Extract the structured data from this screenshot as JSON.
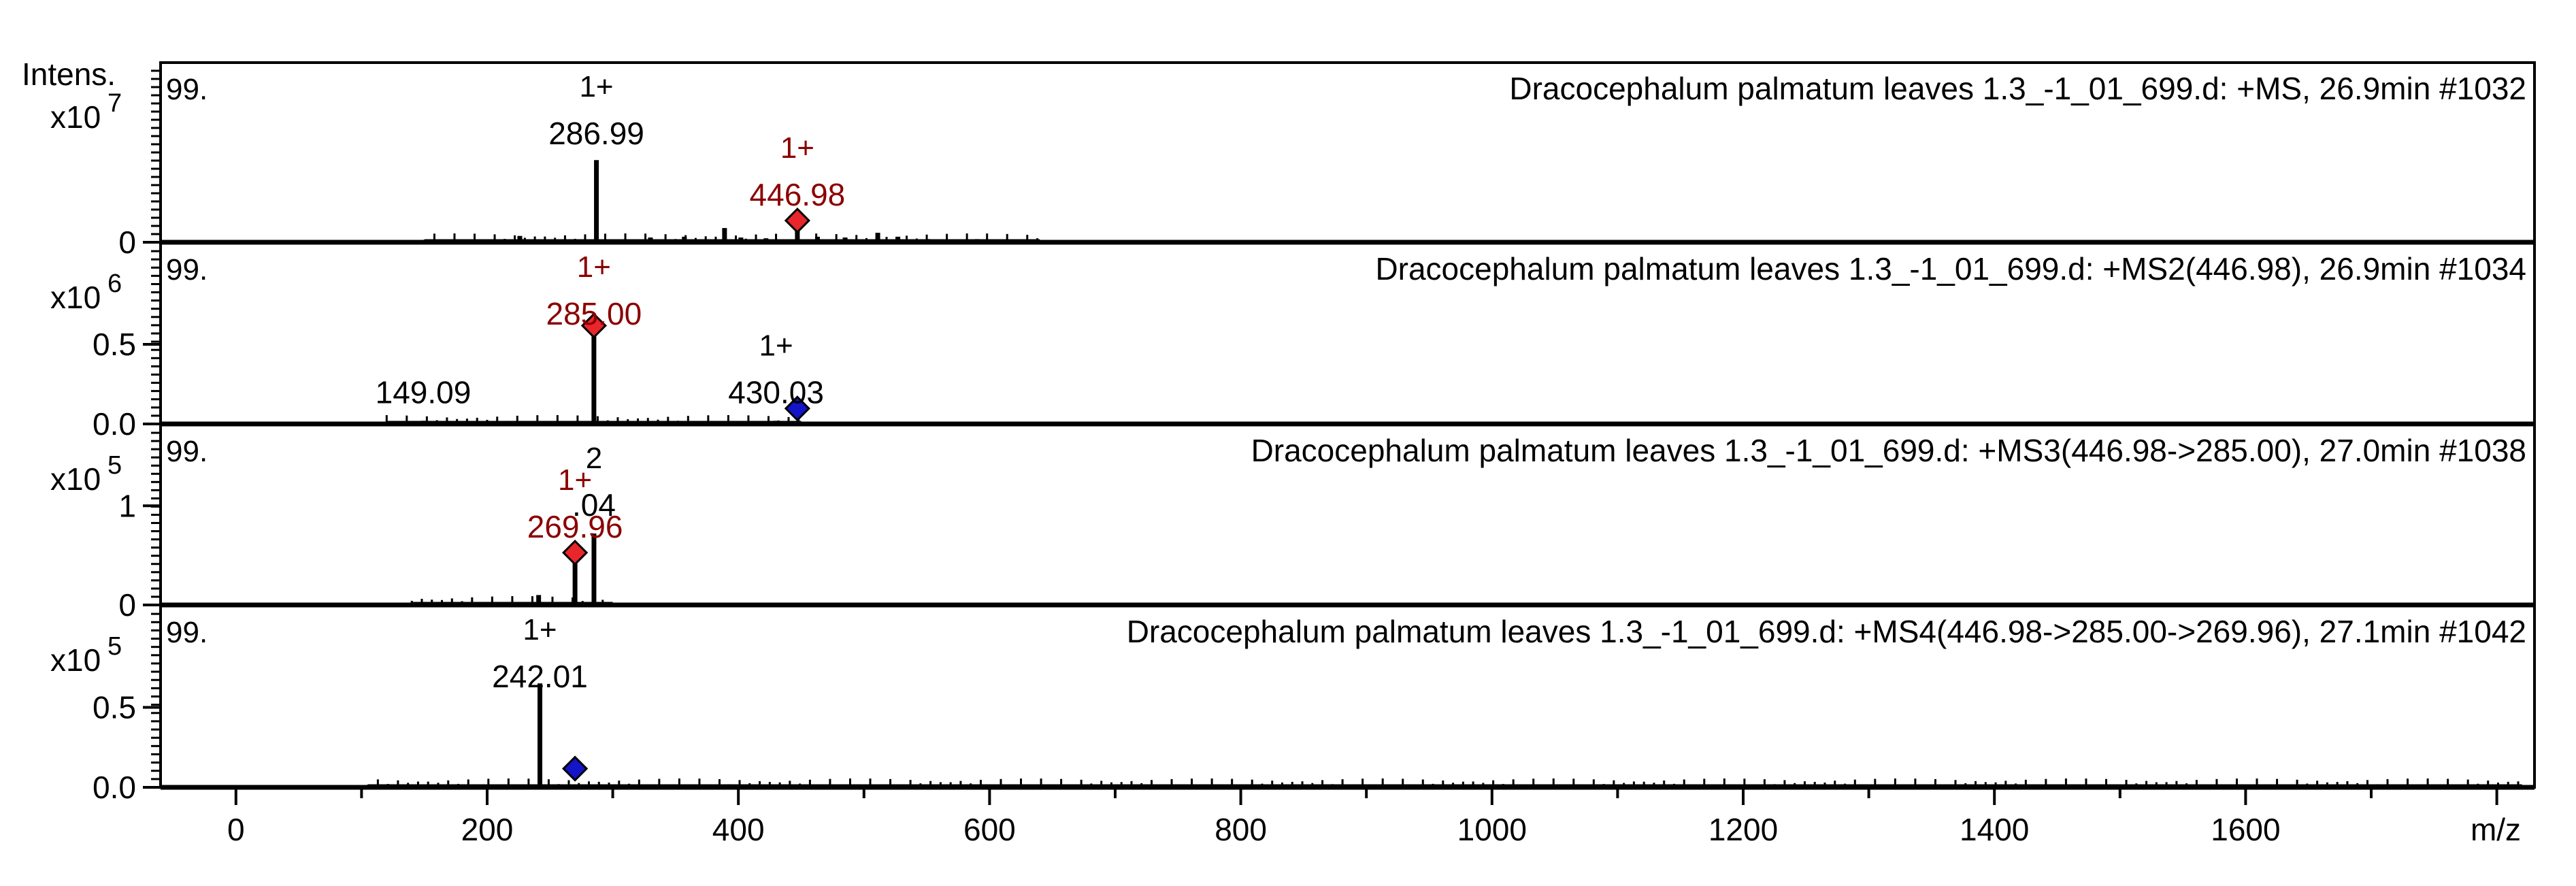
{
  "chart_data": {
    "type": "mass-spectrum",
    "x_axis": {
      "label": "m/z",
      "range": [
        -60,
        1830
      ],
      "ticks": [
        0,
        200,
        400,
        600,
        800,
        1000,
        1200,
        1400,
        1600
      ],
      "tick_labels": [
        "0",
        "200",
        "400",
        "600",
        "800",
        "1000",
        "1200",
        "1400",
        "1600"
      ]
    },
    "y_label": "Intens.",
    "panels": [
      {
        "title": "Dracocephalum palmatum  leaves 1.3_-1_01_699.d: +MS, 26.9min #1032",
        "y_scale": "x10^7",
        "scale_base": "x10",
        "scale_exp": "7",
        "ylim": [
          0,
          1
        ],
        "y_ticks": [
          0
        ],
        "y_tick_labels": [
          "0"
        ],
        "corner_label": "99.",
        "peaks": [
          {
            "mz": 286.99,
            "rel": 0.52
          },
          {
            "mz": 446.98,
            "rel": 0.12
          },
          {
            "mz": 389.0,
            "rel": 0.09
          },
          {
            "mz": 511.0,
            "rel": 0.06
          },
          {
            "mz": 226.0,
            "rel": 0.04
          },
          {
            "mz": 330.0,
            "rel": 0.03
          },
          {
            "mz": 357.0,
            "rel": 0.035
          },
          {
            "mz": 402.0,
            "rel": 0.03
          },
          {
            "mz": 422.0,
            "rel": 0.025
          },
          {
            "mz": 463.0,
            "rel": 0.035
          },
          {
            "mz": 485.0,
            "rel": 0.03
          },
          {
            "mz": 527.0,
            "rel": 0.035
          },
          {
            "mz": 551.0,
            "rel": 0.02
          },
          {
            "mz": 590.0,
            "rel": 0.02
          },
          {
            "mz": 627.0,
            "rel": 0.015
          }
        ],
        "noise_range": [
          150,
          640
        ],
        "annotations": [
          {
            "mz": 286.99,
            "charge": "1+",
            "label": "286.99",
            "color": "#000000"
          },
          {
            "mz": 446.98,
            "charge": "1+",
            "label": "446.98",
            "color": "#8b0000"
          }
        ],
        "markers": [
          {
            "mz": 446.98,
            "rel": 0.12,
            "color": "#e8262c"
          }
        ]
      },
      {
        "title": "Dracocephalum palmatum  leaves 1.3_-1_01_699.d: +MS2(446.98), 26.9min #1034",
        "y_scale": "x10^6",
        "scale_base": "x10",
        "scale_exp": "6",
        "ylim": [
          0,
          1
        ],
        "y_ticks": [
          0,
          0.5
        ],
        "y_tick_labels": [
          "0.0",
          "0.5"
        ],
        "corner_label": "99.",
        "peaks": [
          {
            "mz": 285.0,
            "rel": 0.6
          },
          {
            "mz": 149.09,
            "rel": 0.02
          },
          {
            "mz": 430.03,
            "rel": 0.02
          },
          {
            "mz": 250.0,
            "rel": 0.01
          },
          {
            "mz": 380.0,
            "rel": 0.01
          }
        ],
        "noise_range": [
          120,
          450
        ],
        "annotations": [
          {
            "mz": 285.0,
            "charge": "1+",
            "label": "285.00",
            "color": "#8b0000"
          },
          {
            "mz": 149.09,
            "charge": "",
            "label": "149.09",
            "color": "#000000"
          },
          {
            "mz": 430.03,
            "charge": "1+",
            "label": "430.03",
            "color": "#000000"
          }
        ],
        "markers": [
          {
            "mz": 285.0,
            "rel": 0.6,
            "color": "#e8262c"
          },
          {
            "mz": 446.98,
            "rel": 0.08,
            "color": "#1414c8"
          }
        ]
      },
      {
        "title": "Dracocephalum palmatum  leaves 1.3_-1_01_699.d: +MS3(446.98->285.00), 27.0min #1038",
        "y_scale": "x10^5",
        "scale_base": "x10",
        "scale_exp": "5",
        "ylim": [
          0,
          1.6
        ],
        "y_ticks": [
          0,
          1
        ],
        "y_tick_labels": [
          "0",
          "1"
        ],
        "corner_label": "99.",
        "peaks": [
          {
            "mz": 285.04,
            "rel": 0.72
          },
          {
            "mz": 269.96,
            "rel": 0.5
          },
          {
            "mz": 241.0,
            "rel": 0.1
          },
          {
            "mz": 149.0,
            "rel": 0.03
          }
        ],
        "noise_range": [
          140,
          300
        ],
        "annotations": [
          {
            "mz": 285.04,
            "charge": "2",
            "label": ".04",
            "color": "#000000"
          },
          {
            "mz": 269.96,
            "charge": "1+",
            "label": "269.96",
            "color": "#8b0000"
          }
        ],
        "markers": [
          {
            "mz": 269.96,
            "rel": 0.5,
            "color": "#e8262c"
          }
        ]
      },
      {
        "title": "Dracocephalum palmatum  leaves 1.3_-1_01_699.d: +MS4(446.98->285.00->269.96), 27.1min #1042",
        "y_scale": "x10^5",
        "scale_base": "x10",
        "scale_exp": "5",
        "ylim": [
          0,
          1
        ],
        "y_ticks": [
          0,
          0.5
        ],
        "y_tick_labels": [
          "0.0",
          "0.5"
        ],
        "corner_label": "99.",
        "peaks": [
          {
            "mz": 242.01,
            "rel": 0.65
          }
        ],
        "noise_range": [
          105,
          1820
        ],
        "annotations": [
          {
            "mz": 242.01,
            "charge": "1+",
            "label": "242.01",
            "color": "#000000"
          }
        ],
        "markers": [
          {
            "mz": 269.96,
            "rel": 0.1,
            "color": "#1414c8"
          }
        ]
      }
    ]
  }
}
